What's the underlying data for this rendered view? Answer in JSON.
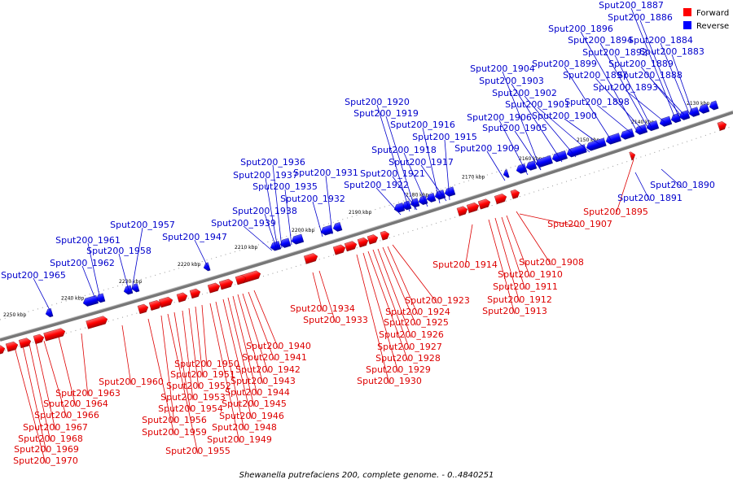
{
  "title": "Shewanella putrefaciens 200, complete genome. - 0..4840251",
  "legend": [
    {
      "label": "Forward",
      "color": "#ff0000"
    },
    {
      "label": "Reverse",
      "color": "#0000ff"
    }
  ],
  "ticks": [
    "2130 kbp",
    "2140 kbp",
    "2150 kbp",
    "2160 kbp",
    "2170 kbp",
    "2180 kbp",
    "2190 kbp",
    "2200 kbp",
    "2210 kbp",
    "2220 kbp",
    "2230 kbp",
    "2240 kbp",
    "2250 kbp"
  ],
  "reverse_genes": [
    "Sput200_1883",
    "Sput200_1884",
    "Sput200_1886",
    "Sput200_1887",
    "Sput200_1888",
    "Sput200_1889",
    "Sput200_1892",
    "Sput200_1893",
    "Sput200_1894",
    "Sput200_1896",
    "Sput200_1897",
    "Sput200_1898",
    "Sput200_1899",
    "Sput200_1900",
    "Sput200_1901",
    "Sput200_1902",
    "Sput200_1903",
    "Sput200_1904",
    "Sput200_1905",
    "Sput200_1906",
    "Sput200_1909",
    "Sput200_1915",
    "Sput200_1916",
    "Sput200_1917",
    "Sput200_1918",
    "Sput200_1919",
    "Sput200_1920",
    "Sput200_1921",
    "Sput200_1922",
    "Sput200_1931",
    "Sput200_1932",
    "Sput200_1935",
    "Sput200_1936",
    "Sput200_1937",
    "Sput200_1938",
    "Sput200_1939",
    "Sput200_1947",
    "Sput200_1957",
    "Sput200_1958",
    "Sput200_1961",
    "Sput200_1962",
    "Sput200_1965"
  ],
  "reverse_extra": [
    "Sput200_1890",
    "Sput200_1891"
  ],
  "forward_genes_right": [
    "Sput200_1895",
    "Sput200_1907",
    "Sput200_1908",
    "Sput200_1910",
    "Sput200_1911",
    "Sput200_1912",
    "Sput200_1913",
    "Sput200_1914",
    "Sput200_1923",
    "Sput200_1924",
    "Sput200_1925",
    "Sput200_1926",
    "Sput200_1927",
    "Sput200_1928",
    "Sput200_1929",
    "Sput200_1930",
    "Sput200_1933",
    "Sput200_1934"
  ],
  "forward_genes_left": [
    "Sput200_1940",
    "Sput200_1941",
    "Sput200_1942",
    "Sput200_1943",
    "Sput200_1944",
    "Sput200_1945",
    "Sput200_1946",
    "Sput200_1948",
    "Sput200_1949",
    "Sput200_1950",
    "Sput200_1951",
    "Sput200_1952",
    "Sput200_1953",
    "Sput200_1954",
    "Sput200_1955",
    "Sput200_1956",
    "Sput200_1959",
    "Sput200_1960",
    "Sput200_1963",
    "Sput200_1964",
    "Sput200_1966",
    "Sput200_1967",
    "Sput200_1968",
    "Sput200_1969",
    "Sput200_1970"
  ]
}
